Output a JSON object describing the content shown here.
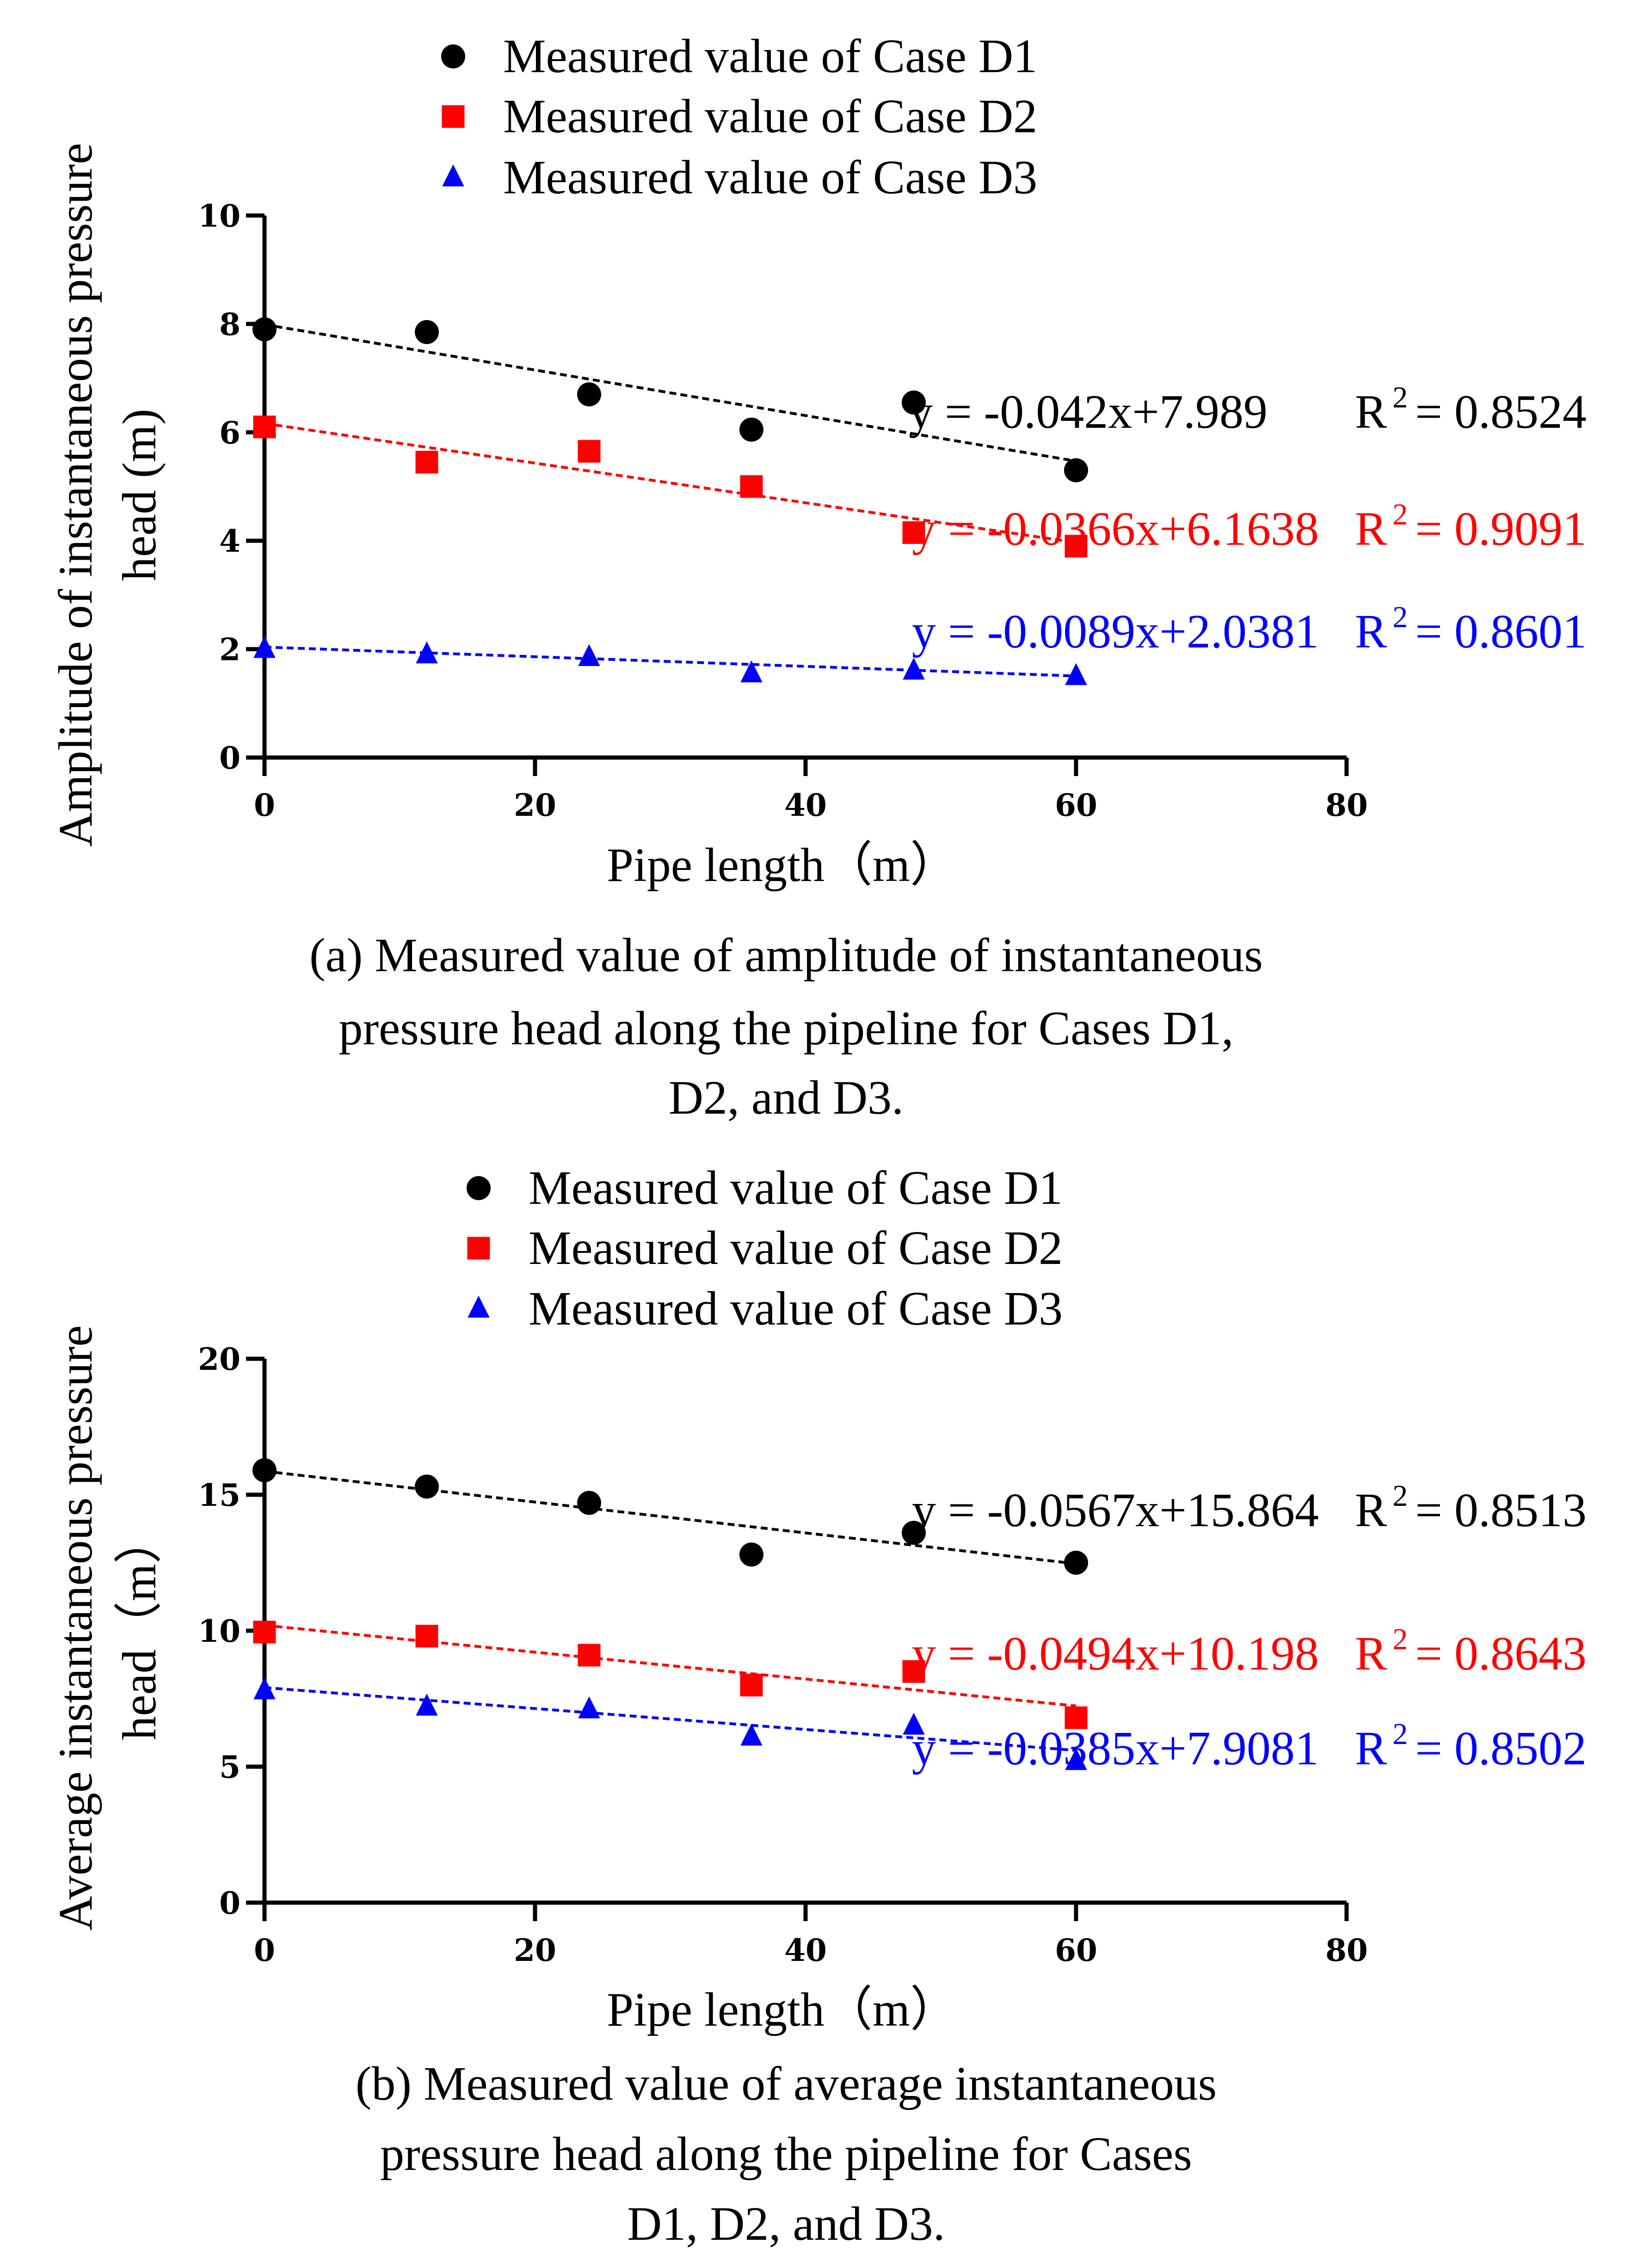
{
  "panels": [
    {
      "caption_lines": [
        "(a) Measured value of amplitude of instantaneous",
        "pressure head along the pipeline for Cases D1,",
        "D2, and D3."
      ]
    },
    {
      "caption_lines": [
        "(b) Measured value of average instantaneous",
        "pressure head along the pipeline for Cases",
        "D1, D2, and D3."
      ]
    }
  ],
  "chart_data": [
    {
      "type": "scatter",
      "title": "",
      "xlabel": "Pipe length（m）",
      "ylabel_lines": [
        "Amplitude of instantaneous pressure",
        "head (m)"
      ],
      "xlim": [
        0,
        80
      ],
      "ylim": [
        0,
        10
      ],
      "xticks": [
        0,
        20,
        40,
        60,
        80
      ],
      "yticks": [
        0,
        2,
        4,
        6,
        8,
        10
      ],
      "grid": false,
      "legend_position": "top",
      "x": [
        0,
        12,
        24,
        36,
        48,
        60
      ],
      "series": [
        {
          "name": "Measured value of Case D1",
          "marker": "circle",
          "color": "#000000",
          "values": [
            7.9,
            7.85,
            6.7,
            6.05,
            6.55,
            5.3
          ],
          "trendline": {
            "slope": -0.042,
            "intercept": 7.989
          },
          "equation": "y = -0.042x+7.989",
          "r2_label": "R",
          "r2_exp": "2",
          "r2_value": "= 0.8524"
        },
        {
          "name": "Measured value of Case D2",
          "marker": "square",
          "color": "#ff0000",
          "values": [
            6.1,
            5.45,
            5.65,
            5.0,
            4.15,
            3.9
          ],
          "trendline": {
            "slope": -0.0366,
            "intercept": 6.1638
          },
          "equation": "y = -0.0366x+6.1638",
          "r2_label": "R",
          "r2_exp": "2",
          "r2_value": "= 0.9091"
        },
        {
          "name": "Measured value of Case D3",
          "marker": "triangle",
          "color": "#0000ff",
          "values": [
            2.0,
            1.9,
            1.85,
            1.55,
            1.6,
            1.5
          ],
          "trendline": {
            "slope": -0.0089,
            "intercept": 2.0381
          },
          "equation": "y = -0.0089x+2.0381",
          "r2_label": "R",
          "r2_exp": "2",
          "r2_value": "= 0.8601"
        }
      ]
    },
    {
      "type": "scatter",
      "title": "",
      "xlabel": "Pipe length（m）",
      "ylabel_lines": [
        "Average instantaneous pressure",
        "head（m）"
      ],
      "xlim": [
        0,
        80
      ],
      "ylim": [
        0,
        20
      ],
      "xticks": [
        0,
        20,
        40,
        60,
        80
      ],
      "yticks": [
        0,
        5,
        10,
        15,
        20
      ],
      "grid": false,
      "legend_position": "top",
      "x": [
        0,
        12,
        24,
        36,
        48,
        60
      ],
      "series": [
        {
          "name": "Measured value of Case D1",
          "marker": "circle",
          "color": "#000000",
          "values": [
            15.9,
            15.3,
            14.7,
            12.8,
            13.6,
            12.5
          ],
          "trendline": {
            "slope": -0.0567,
            "intercept": 15.864
          },
          "equation": "y = -0.0567x+15.864",
          "r2_label": "R",
          "r2_exp": "2",
          "r2_value": "= 0.8513"
        },
        {
          "name": "Measured value of Case D2",
          "marker": "square",
          "color": "#ff0000",
          "values": [
            9.95,
            9.8,
            9.1,
            8.0,
            8.5,
            6.8
          ],
          "trendline": {
            "slope": -0.0494,
            "intercept": 10.198
          },
          "equation": "y = -0.0494x+10.198",
          "r2_label": "R",
          "r2_exp": "2",
          "r2_value": "= 0.8643"
        },
        {
          "name": "Measured value of Case D3",
          "marker": "triangle",
          "color": "#0000ff",
          "values": [
            7.8,
            7.2,
            7.1,
            6.1,
            6.5,
            5.2
          ],
          "trendline": {
            "slope": -0.0385,
            "intercept": 7.9081
          },
          "equation": "y = -0.0385x+7.9081",
          "r2_label": "R",
          "r2_exp": "2",
          "r2_value": "= 0.8502"
        }
      ]
    }
  ]
}
